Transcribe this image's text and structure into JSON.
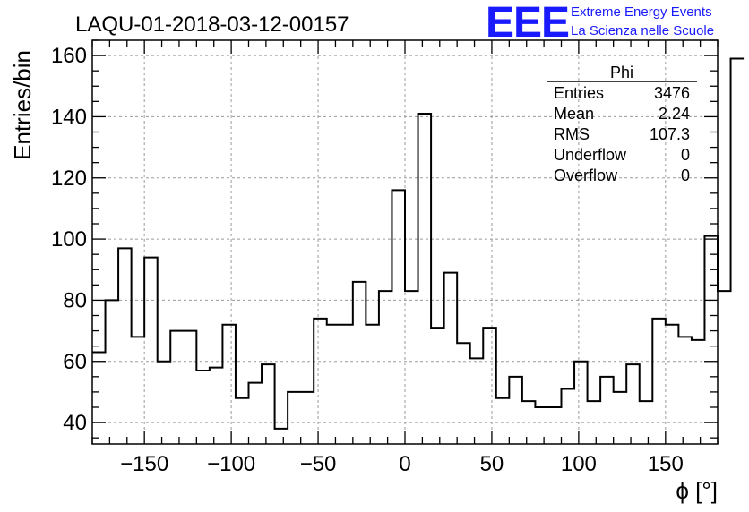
{
  "chart_data": {
    "type": "histogram",
    "title": "LAQU-01-2018-03-12-00157",
    "xlabel": "ϕ [°]",
    "ylabel": "Entries/bin",
    "xlim": [
      -180,
      180
    ],
    "ylim": [
      33,
      165
    ],
    "x_ticks": [
      -150,
      -100,
      -50,
      0,
      50,
      100,
      150
    ],
    "x_tick_labels": [
      "−150",
      "−100",
      "−50",
      "0",
      "50",
      "100",
      "150"
    ],
    "y_ticks": [
      40,
      60,
      80,
      100,
      120,
      140,
      160
    ],
    "y_tick_labels": [
      "40",
      "60",
      "80",
      "100",
      "120",
      "140",
      "160"
    ],
    "grid": true,
    "bin_width": 7.5,
    "values": [
      63,
      80,
      97,
      68,
      94,
      60,
      70,
      70,
      57,
      58,
      72,
      48,
      53,
      59,
      38,
      50,
      50,
      74,
      72,
      72,
      86,
      72,
      83,
      116,
      83,
      141,
      71,
      89,
      66,
      61,
      71,
      48,
      55,
      47,
      45,
      45,
      51,
      60,
      47,
      55,
      50,
      59,
      47,
      74,
      72,
      68,
      67,
      101,
      83,
      159
    ],
    "line_color": "#000000"
  },
  "stats": {
    "title": "Phi",
    "rows": [
      {
        "label": "Entries",
        "value": "3476"
      },
      {
        "label": "Mean",
        "value": "2.24"
      },
      {
        "label": "RMS",
        "value": "107.3"
      },
      {
        "label": "Underflow",
        "value": "0"
      },
      {
        "label": "Overflow",
        "value": "0"
      }
    ]
  },
  "logo": {
    "text": "EEE",
    "line1": "Extreme Energy Events",
    "line2": "La Scienza nelle Scuole",
    "color": "#1a1aff"
  }
}
